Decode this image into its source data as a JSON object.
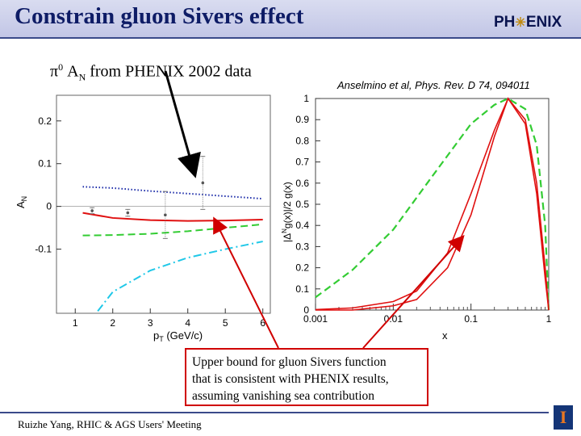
{
  "header": {
    "title": "Constrain gluon Sivers effect",
    "logo_left": "PH",
    "logo_star": "✳",
    "logo_right": "ENIX"
  },
  "subtitle": {
    "pi_symbol": "π",
    "pi_superscript": "0",
    "a_letter": "A",
    "n_subscript": "N",
    "rest": " from PHENIX 2002 data"
  },
  "citation": "Anselmino et al, Phys. Rev. D 74, 094011",
  "callout": {
    "line1": "Upper bound for gluon Sivers function",
    "line2": "that is consistent with PHENIX results,",
    "line3": "assuming vanishing sea contribution"
  },
  "footer": {
    "text": "Ruizhe Yang, RHIC & AGS Users' Meeting",
    "logo_letter": "I"
  },
  "colors": {
    "title_text": "#0e1c66",
    "red": "#e01010",
    "green": "#33cc33",
    "blue": "#1a2aa8",
    "cyan": "#20c8e8",
    "callout_border": "#d00000"
  },
  "chart_data": [
    {
      "type": "line",
      "title": "",
      "xlabel": "p_T (GeV/c)",
      "ylabel": "A_N",
      "xlim": [
        0.5,
        6.2
      ],
      "ylim": [
        -0.25,
        0.26
      ],
      "xticks": [
        "1",
        "2",
        "3",
        "4",
        "5",
        "6"
      ],
      "yticks": [
        "0.2",
        "0.1",
        "0",
        "-0.1"
      ],
      "points": {
        "name": "PHENIX pi0 data",
        "x": [
          1.45,
          2.4,
          3.4,
          4.4
        ],
        "y": [
          -0.01,
          -0.015,
          -0.02,
          0.055
        ],
        "err": [
          0.007,
          0.008,
          0.055,
          0.062
        ]
      },
      "series": [
        {
          "name": "blue dotted",
          "style": "dotted",
          "color": "#1a2aa8",
          "x": [
            1.2,
            2.0,
            3.0,
            4.0,
            5.0,
            6.0
          ],
          "y": [
            0.046,
            0.043,
            0.036,
            0.03,
            0.024,
            0.018
          ]
        },
        {
          "name": "red solid",
          "style": "solid",
          "color": "#e01010",
          "x": [
            1.2,
            2.0,
            3.0,
            4.0,
            5.0,
            6.0
          ],
          "y": [
            -0.015,
            -0.027,
            -0.032,
            -0.034,
            -0.033,
            -0.031
          ]
        },
        {
          "name": "green dashed",
          "style": "dashed",
          "color": "#33cc33",
          "x": [
            1.2,
            2.0,
            3.0,
            4.0,
            5.0,
            6.0
          ],
          "y": [
            -0.068,
            -0.067,
            -0.064,
            -0.058,
            -0.05,
            -0.042
          ]
        },
        {
          "name": "cyan dash-dot",
          "style": "dashdot",
          "color": "#20c8e8",
          "x": [
            1.6,
            2.0,
            3.0,
            4.0,
            5.0,
            6.0
          ],
          "y": [
            -0.245,
            -0.2,
            -0.15,
            -0.12,
            -0.1,
            -0.082
          ]
        }
      ]
    },
    {
      "type": "line",
      "title": "",
      "xlabel": "x",
      "ylabel": "|Δ^N g(x)|/2 g(x)",
      "xscale": "log",
      "xlim": [
        0.001,
        1
      ],
      "ylim": [
        0,
        1
      ],
      "xticks": [
        "0.001",
        "0.01",
        "0.1",
        "1"
      ],
      "yticks": [
        "1",
        "0.9",
        "0.8",
        "0.7",
        "0.6",
        "0.5",
        "0.4",
        "0.3",
        "0.2",
        "0.1",
        "0"
      ],
      "series": [
        {
          "name": "green dashed",
          "style": "dashed",
          "color": "#33cc33",
          "x": [
            0.001,
            0.003,
            0.01,
            0.03,
            0.1,
            0.2,
            0.3,
            0.5,
            0.7,
            0.9,
            1.0
          ],
          "y": [
            0.06,
            0.19,
            0.38,
            0.62,
            0.88,
            0.97,
            1.0,
            0.95,
            0.78,
            0.4,
            0.0
          ]
        },
        {
          "name": "red solid A",
          "style": "solid",
          "color": "#e01010",
          "x": [
            0.001,
            0.003,
            0.01,
            0.02,
            0.05,
            0.1,
            0.2,
            0.3,
            0.5,
            0.7,
            0.9,
            1.0
          ],
          "y": [
            0.002,
            0.01,
            0.04,
            0.09,
            0.27,
            0.55,
            0.85,
            1.0,
            0.88,
            0.55,
            0.15,
            0.0
          ]
        },
        {
          "name": "red solid B",
          "style": "solid",
          "color": "#e01010",
          "x": [
            0.001,
            0.003,
            0.01,
            0.02,
            0.05,
            0.1,
            0.2,
            0.3,
            0.5,
            0.7,
            0.9,
            1.0
          ],
          "y": [
            0.0,
            0.0,
            0.02,
            0.05,
            0.2,
            0.45,
            0.82,
            1.0,
            0.9,
            0.6,
            0.2,
            0.0
          ]
        }
      ]
    }
  ]
}
